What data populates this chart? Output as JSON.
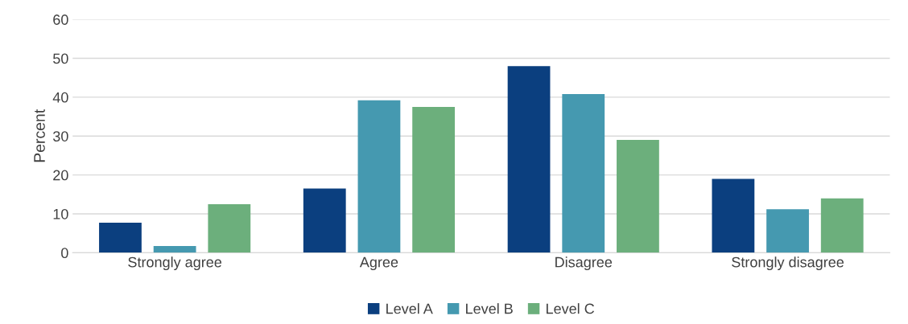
{
  "chart_data": {
    "type": "bar",
    "ylabel": "Percent",
    "categories": [
      "Strongly agree",
      "Agree",
      "Disagree",
      "Strongly disagree"
    ],
    "series": [
      {
        "name": "Level A",
        "color": "#0b3f7f",
        "values": [
          7.7,
          16.5,
          48,
          19
        ]
      },
      {
        "name": "Level B",
        "color": "#4599b0",
        "values": [
          1.7,
          39.2,
          40.8,
          11.2
        ]
      },
      {
        "name": "Level C",
        "color": "#6caf7c",
        "values": [
          12.5,
          37.5,
          29,
          14
        ]
      }
    ],
    "ylim": [
      0,
      60
    ],
    "yticks": [
      0,
      10,
      20,
      30,
      40,
      50,
      60
    ],
    "grid": "y",
    "legend": "bottom"
  }
}
